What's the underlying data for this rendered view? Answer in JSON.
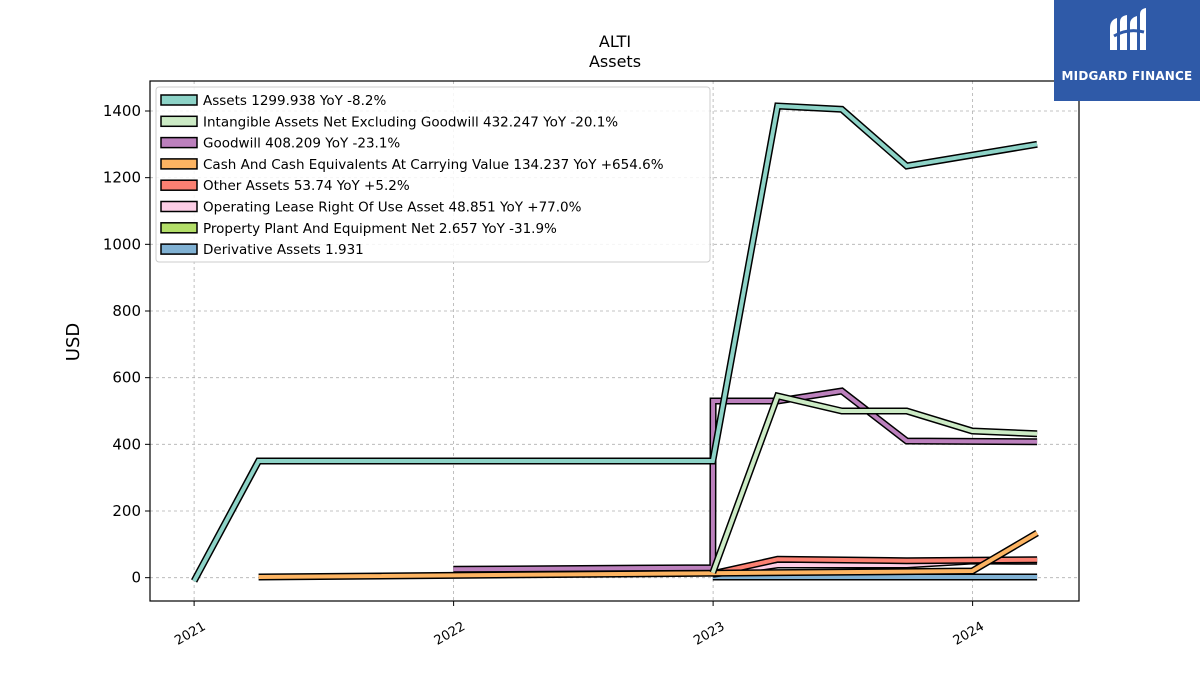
{
  "chart_data": {
    "type": "line",
    "title": "ALTI",
    "subtitle": "Assets",
    "ylabel": "USD",
    "xlabel": "",
    "ylim": [
      -70,
      1490
    ],
    "xlim": [
      2020.83,
      2024.41
    ],
    "yticks": [
      "0",
      "200",
      "400",
      "600",
      "800",
      "1000",
      "1200",
      "1400"
    ],
    "xticks": [
      "2021",
      "2022",
      "2023",
      "2024"
    ],
    "grid": true,
    "legend_position": "top-left",
    "series": [
      {
        "name": "Assets  1299.938 YoY -8.2%",
        "color": "#8dd3c7",
        "x": [
          "2021-01-01",
          "2021-03-31",
          "2022-12-31",
          "2023-03-31",
          "2023-06-30",
          "2023-09-30",
          "2024-03-31"
        ],
        "y": [
          -10,
          350,
          350,
          1415,
          1405,
          1235,
          1300
        ]
      },
      {
        "name": "Intangible Assets Net Excluding Goodwill  432.247 YoY -20.1%",
        "color": "#ccebc5",
        "x": [
          "2022-12-31",
          "2023-03-31",
          "2023-06-30",
          "2023-09-30",
          "2023-12-31",
          "2024-03-31"
        ],
        "y": [
          15,
          545,
          500,
          500,
          440,
          432
        ]
      },
      {
        "name": "Goodwill  408.209 YoY -23.1%",
        "color": "#bc80bd",
        "x": [
          "2021-12-31",
          "2022-12-31",
          "2023-01-01",
          "2023-03-31",
          "2023-06-30",
          "2023-09-30",
          "2024-03-31"
        ],
        "y": [
          25,
          30,
          530,
          530,
          560,
          410,
          408
        ]
      },
      {
        "name": "Cash And Cash Equivalents At Carrying Value  134.237 YoY +654.6%",
        "color": "#fdb462",
        "x": [
          "2021-03-31",
          "2023-12-31",
          "2024-03-31"
        ],
        "y": [
          2,
          20,
          134
        ]
      },
      {
        "name": "Other Assets  53.74 YoY +5.2%",
        "color": "#fb8072",
        "x": [
          "2022-12-31",
          "2023-03-31",
          "2023-09-30",
          "2024-03-31"
        ],
        "y": [
          12,
          55,
          51,
          54
        ]
      },
      {
        "name": "Operating Lease Right Of Use Asset  48.851 YoY +77.0%",
        "color": "#fccde5",
        "x": [
          "2022-12-31",
          "2023-03-31",
          "2023-09-30",
          "2023-12-31",
          "2024-03-31"
        ],
        "y": [
          10,
          38,
          38,
          50,
          49
        ]
      },
      {
        "name": "Property Plant And Equipment Net  2.657 YoY -31.9%",
        "color": "#b3de69",
        "x": [],
        "y": []
      },
      {
        "name": "Derivative Assets  1.931",
        "color": "#80b1d3",
        "x": [
          "2022-12-31",
          "2024-03-31"
        ],
        "y": [
          2,
          2
        ]
      }
    ]
  },
  "logo": {
    "text": "MIDGARD FINANCE"
  }
}
